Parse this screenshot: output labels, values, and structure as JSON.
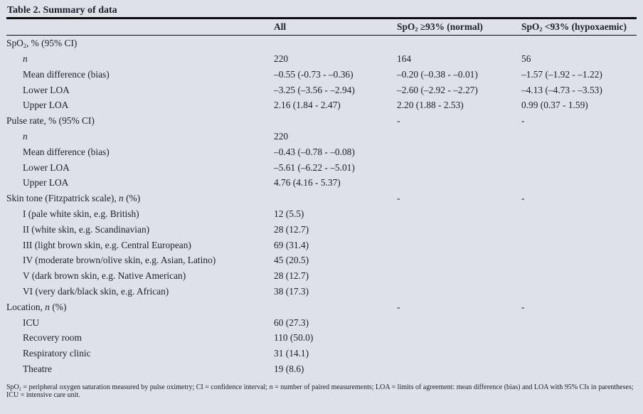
{
  "title": "Table 2. Summary of data",
  "colors": {
    "background": "#dfe1e9",
    "text": "#20222b",
    "rule": "#0b0c10"
  },
  "header": {
    "col1": "",
    "col2": "All",
    "col3": {
      "pre": "SpO",
      "sub": "2",
      "post": " ≥93% (normal)"
    },
    "col4": {
      "pre": "SpO",
      "sub": "2",
      "post": " <93% (hypoxaemic)"
    }
  },
  "table": {
    "rows": [
      {
        "type": "section",
        "label": [
          [
            "r",
            "SpO"
          ],
          [
            "s",
            "2"
          ],
          [
            "r",
            ", % (95% CI)"
          ]
        ],
        "cells": [
          "",
          "",
          ""
        ]
      },
      {
        "type": "item",
        "label": [
          [
            "i",
            "n"
          ]
        ],
        "cells": [
          "220",
          "164",
          "56"
        ]
      },
      {
        "type": "item",
        "label": [
          [
            "r",
            "Mean difference (bias)"
          ]
        ],
        "cells": [
          "–0.55 (-0.73 - –0.36)",
          "–0.20 (–0.38 - –0.01)",
          "–1.57 (–1.92 - –1.22)"
        ]
      },
      {
        "type": "item",
        "label": [
          [
            "r",
            "Lower LOA"
          ]
        ],
        "cells": [
          "–3.25 (–3.56 - –2.94)",
          "–2.60 (–2.92 - –2.27)",
          "–4.13 (–4.73 - –3.53)"
        ]
      },
      {
        "type": "item",
        "label": [
          [
            "r",
            "Upper LOA"
          ]
        ],
        "cells": [
          "2.16 (1.84 - 2.47)",
          "2.20 (1.88 - 2.53)",
          "0.99 (0.37 - 1.59)"
        ]
      },
      {
        "type": "section",
        "label": [
          [
            "r",
            "Pulse rate, % (95% CI)"
          ]
        ],
        "cells": [
          "",
          "-",
          "-"
        ]
      },
      {
        "type": "item",
        "label": [
          [
            "i",
            "n"
          ]
        ],
        "cells": [
          "220",
          "",
          ""
        ]
      },
      {
        "type": "item",
        "label": [
          [
            "r",
            "Mean difference (bias)"
          ]
        ],
        "cells": [
          "–0.43 (–0.78 - –0.08)",
          "",
          ""
        ]
      },
      {
        "type": "item",
        "label": [
          [
            "r",
            "Lower LOA"
          ]
        ],
        "cells": [
          "–5.61 (–6.22 - –5.01)",
          "",
          ""
        ]
      },
      {
        "type": "item",
        "label": [
          [
            "r",
            "Upper LOA"
          ]
        ],
        "cells": [
          "4.76 (4.16 - 5.37)",
          "",
          ""
        ]
      },
      {
        "type": "section",
        "label": [
          [
            "r",
            "Skin tone (Fitzpatrick scale), "
          ],
          [
            "i",
            "n"
          ],
          [
            "r",
            " (%)"
          ]
        ],
        "cells": [
          "",
          "-",
          "-"
        ]
      },
      {
        "type": "item",
        "label": [
          [
            "r",
            "I (pale white skin, e.g. British)"
          ]
        ],
        "cells": [
          "12 (5.5)",
          "",
          ""
        ]
      },
      {
        "type": "item",
        "label": [
          [
            "r",
            "II (white skin, e.g. Scandinavian)"
          ]
        ],
        "cells": [
          "28 (12.7)",
          "",
          ""
        ]
      },
      {
        "type": "item",
        "label": [
          [
            "r",
            "III (light brown skin, e.g. Central European)"
          ]
        ],
        "cells": [
          "69 (31.4)",
          "",
          ""
        ]
      },
      {
        "type": "item",
        "label": [
          [
            "r",
            "IV (moderate brown/olive skin, e.g. Asian, Latino)"
          ]
        ],
        "cells": [
          "45 (20.5)",
          "",
          ""
        ]
      },
      {
        "type": "item",
        "label": [
          [
            "r",
            "V (dark brown skin, e.g. Native American)"
          ]
        ],
        "cells": [
          "28 (12.7)",
          "",
          ""
        ]
      },
      {
        "type": "item",
        "label": [
          [
            "r",
            "VI (very dark/black skin, e.g. African)"
          ]
        ],
        "cells": [
          "38 (17.3)",
          "",
          ""
        ]
      },
      {
        "type": "section",
        "label": [
          [
            "r",
            "Location, "
          ],
          [
            "i",
            "n"
          ],
          [
            "r",
            " (%)"
          ]
        ],
        "cells": [
          "",
          "-",
          "-"
        ]
      },
      {
        "type": "item",
        "label": [
          [
            "r",
            "ICU"
          ]
        ],
        "cells": [
          "60 (27.3)",
          "",
          ""
        ]
      },
      {
        "type": "item",
        "label": [
          [
            "r",
            "Recovery room"
          ]
        ],
        "cells": [
          "110 (50.0)",
          "",
          ""
        ]
      },
      {
        "type": "item",
        "label": [
          [
            "r",
            "Respiratory clinic"
          ]
        ],
        "cells": [
          "31 (14.1)",
          "",
          ""
        ]
      },
      {
        "type": "item",
        "label": [
          [
            "r",
            "Theatre"
          ]
        ],
        "cells": [
          "19 (8.6)",
          "",
          ""
        ]
      }
    ]
  },
  "footnote": {
    "s0": "SpO",
    "s1": "2",
    "s2": " = peripheral oxygen saturation measured by pulse oximetry; CI = confidence interval; ",
    "s3": "n",
    "s4": " = number of paired measurements; LOA = limits of agreement: mean difference (bias) and LOA with 95% CIs in parentheses; ICU = intensive care unit."
  }
}
